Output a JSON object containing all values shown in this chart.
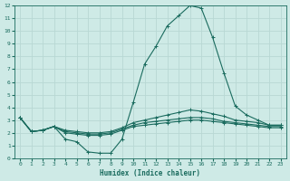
{
  "xlabel": "Humidex (Indice chaleur)",
  "bg_color": "#ceeae6",
  "grid_color": "#b8d8d4",
  "line_color": "#1a6b5e",
  "xlim": [
    -0.5,
    23.5
  ],
  "ylim": [
    0,
    12
  ],
  "xticks": [
    0,
    1,
    2,
    3,
    4,
    5,
    6,
    7,
    8,
    9,
    10,
    11,
    12,
    13,
    14,
    15,
    16,
    17,
    18,
    19,
    20,
    21,
    22,
    23
  ],
  "yticks": [
    0,
    1,
    2,
    3,
    4,
    5,
    6,
    7,
    8,
    9,
    10,
    11,
    12
  ],
  "lines": [
    {
      "x": [
        0,
        1,
        2,
        3,
        4,
        5,
        6,
        7,
        8,
        9,
        10,
        11,
        12,
        13,
        14,
        15,
        16,
        17,
        18,
        19,
        20,
        21,
        22,
        23
      ],
      "y": [
        3.2,
        2.1,
        2.2,
        2.5,
        1.5,
        1.3,
        0.5,
        0.4,
        0.4,
        1.5,
        4.4,
        7.4,
        8.8,
        10.4,
        11.2,
        12.0,
        11.8,
        9.5,
        6.7,
        4.1,
        3.4,
        3.0,
        2.6,
        2.6
      ]
    },
    {
      "x": [
        0,
        1,
        2,
        3,
        4,
        5,
        6,
        7,
        8,
        9,
        10,
        11,
        12,
        13,
        14,
        15,
        16,
        17,
        18,
        19,
        20,
        21,
        22,
        23
      ],
      "y": [
        3.2,
        2.1,
        2.2,
        2.5,
        2.2,
        2.1,
        2.0,
        2.0,
        2.1,
        2.4,
        2.8,
        3.0,
        3.2,
        3.4,
        3.6,
        3.8,
        3.7,
        3.5,
        3.3,
        3.0,
        2.9,
        2.8,
        2.6,
        2.6
      ]
    },
    {
      "x": [
        0,
        1,
        2,
        3,
        4,
        5,
        6,
        7,
        8,
        9,
        10,
        11,
        12,
        13,
        14,
        15,
        16,
        17,
        18,
        19,
        20,
        21,
        22,
        23
      ],
      "y": [
        3.2,
        2.1,
        2.2,
        2.5,
        2.1,
        2.0,
        1.9,
        1.9,
        2.0,
        2.3,
        2.6,
        2.8,
        2.9,
        3.0,
        3.1,
        3.2,
        3.2,
        3.1,
        2.9,
        2.8,
        2.7,
        2.6,
        2.5,
        2.5
      ]
    },
    {
      "x": [
        0,
        1,
        2,
        3,
        4,
        5,
        6,
        7,
        8,
        9,
        10,
        11,
        12,
        13,
        14,
        15,
        16,
        17,
        18,
        19,
        20,
        21,
        22,
        23
      ],
      "y": [
        3.2,
        2.1,
        2.2,
        2.5,
        2.0,
        1.9,
        1.8,
        1.8,
        1.9,
        2.2,
        2.5,
        2.6,
        2.7,
        2.8,
        2.9,
        3.0,
        3.0,
        2.9,
        2.8,
        2.7,
        2.6,
        2.5,
        2.4,
        2.4
      ]
    }
  ]
}
